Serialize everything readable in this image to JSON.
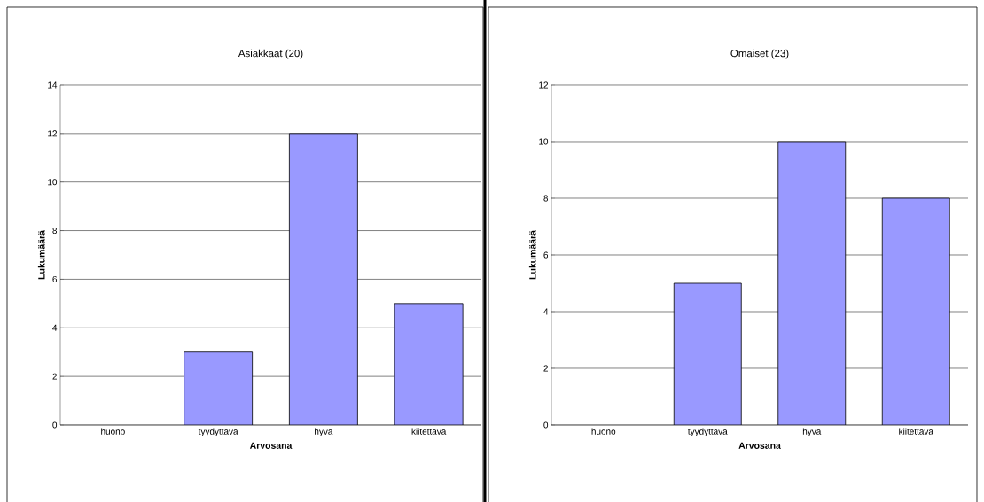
{
  "chart_data": [
    {
      "type": "bar",
      "title": "Asiakkaat (20)",
      "xlabel": "Arvosana",
      "ylabel": "Lukumäärä",
      "categories": [
        "huono",
        "tyydyttävä",
        "hyvä",
        "kiitettävä"
      ],
      "values": [
        0,
        3,
        12,
        5
      ],
      "color": "#9999ff",
      "ylim": [
        0,
        14
      ],
      "yticks": [
        0,
        2,
        4,
        6,
        8,
        10,
        12,
        14
      ],
      "grid": "y"
    },
    {
      "type": "bar",
      "title": "Omaiset (23)",
      "xlabel": "Arvosana",
      "ylabel": "Lukumäärä",
      "categories": [
        "huono",
        "tyydyttävä",
        "hyvä",
        "kiitettävä"
      ],
      "values": [
        0,
        5,
        10,
        8
      ],
      "color": "#9999ff",
      "ylim": [
        0,
        12
      ],
      "yticks": [
        0,
        2,
        4,
        6,
        8,
        10,
        12
      ],
      "grid": "y"
    }
  ]
}
